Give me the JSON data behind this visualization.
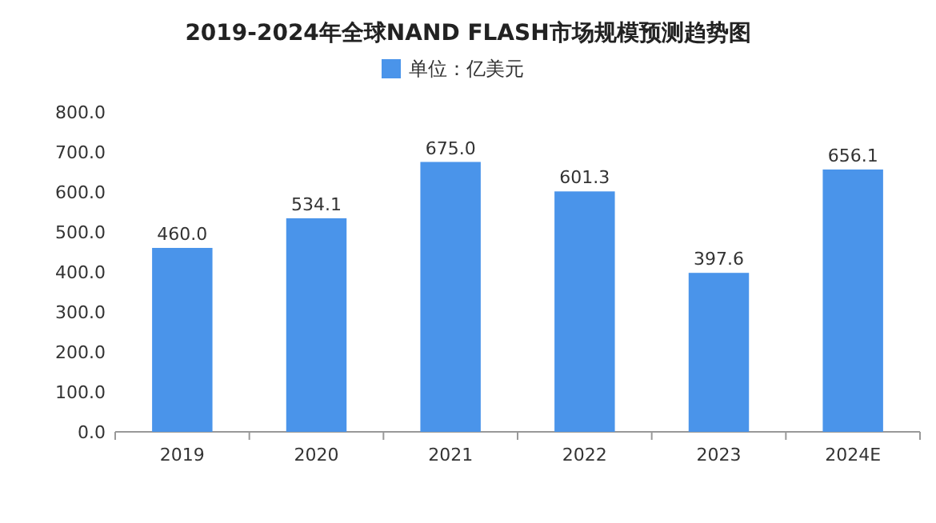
{
  "chart_data": {
    "type": "bar",
    "title": "2019-2024年全球NAND FLASH市场规模预测趋势图",
    "categories": [
      "2019",
      "2020",
      "2021",
      "2022",
      "2023",
      "2024E"
    ],
    "series": [
      {
        "name": "单位：亿美元",
        "color": "#4a94ea",
        "values": [
          460.0,
          534.1,
          675.0,
          601.3,
          397.6,
          656.1
        ]
      }
    ],
    "value_labels": [
      "460.0",
      "534.1",
      "675.0",
      "601.3",
      "397.6",
      "656.1"
    ],
    "ylim": [
      0,
      800
    ],
    "yticks": [
      {
        "value": 0,
        "label": "0.0"
      },
      {
        "value": 100,
        "label": "100.0"
      },
      {
        "value": 200,
        "label": "200.0"
      },
      {
        "value": 300,
        "label": "300.0"
      },
      {
        "value": 400,
        "label": "400.0"
      },
      {
        "value": 500,
        "label": "500.0"
      },
      {
        "value": 600,
        "label": "600.0"
      },
      {
        "value": 700,
        "label": "700.0"
      },
      {
        "value": 800,
        "label": "800.0"
      }
    ],
    "grid": false,
    "legend": "top"
  }
}
